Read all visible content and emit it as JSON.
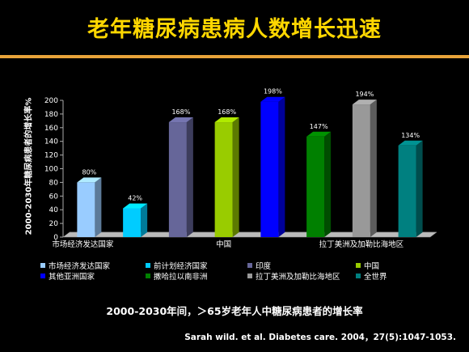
{
  "title": "老年糖尿病患病人数增长迅速",
  "caption": "2000-2030年间，＞65岁老年人中糖尿病患者的增长率",
  "citation": "Sarah wild. et al. Diabetes care. 2004，27(5):1047-1053.",
  "chart_data": {
    "type": "bar",
    "ylabel": "2000-2030年糖尿病患者的增长率%",
    "ylim": [
      0,
      200
    ],
    "yticks": [
      "0",
      "20",
      "40",
      "60",
      "80",
      "100",
      "120",
      "140",
      "160",
      "180",
      "200"
    ],
    "grid": false,
    "legend_position": "bottom",
    "x_category_labels": [
      "市场经济发达国家",
      "中国",
      "拉丁美洲及加勒比海地区"
    ],
    "series": [
      {
        "name": "市场经济发达国家",
        "value": 80,
        "label": "80%",
        "color": "#99CCFF"
      },
      {
        "name": "前计划经济国家",
        "value": 42,
        "label": "42%",
        "color": "#00CCFF"
      },
      {
        "name": "印度",
        "value": 168,
        "label": "168%",
        "color": "#666699"
      },
      {
        "name": "中国",
        "value": 168,
        "label": "168%",
        "color": "#99CC00"
      },
      {
        "name": "其他亚洲国家",
        "value": 198,
        "label": "198%",
        "color": "#0000FF"
      },
      {
        "name": "撒哈拉以南非洲",
        "value": 147,
        "label": "147%",
        "color": "#008000"
      },
      {
        "name": "拉丁美洲及加勒比海地区",
        "value": 194,
        "label": "194%",
        "color": "#999999"
      },
      {
        "name": "全世界",
        "value": 134,
        "label": "134%",
        "color": "#008080"
      }
    ]
  }
}
